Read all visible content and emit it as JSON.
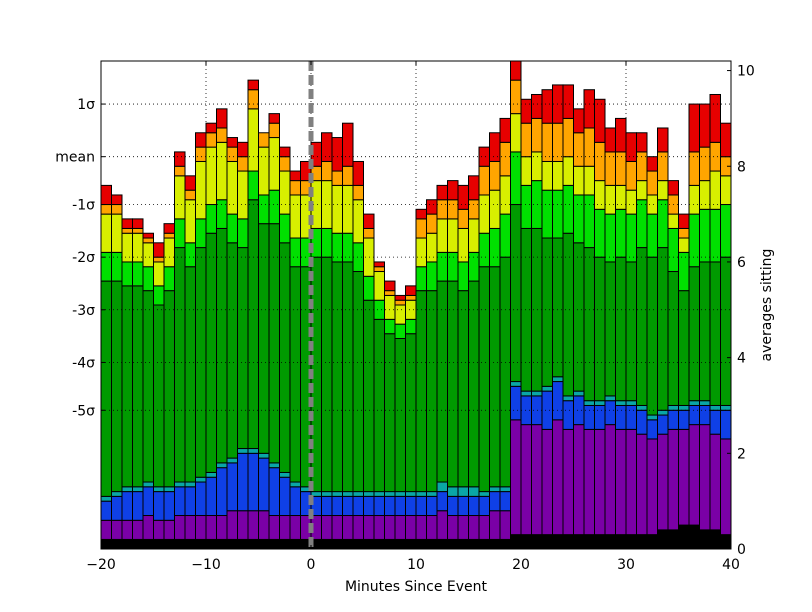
{
  "chart_data": {
    "type": "bar",
    "stacked": true,
    "xlabel": "Minutes Since Event",
    "ylabel_right": "averages sitting",
    "xlim": [
      -20,
      40
    ],
    "ylim_right": [
      0,
      10.2
    ],
    "grid": true,
    "event_marker_x": 0,
    "x_ticks": [
      "−20",
      "−10",
      "0",
      "10",
      "20",
      "30",
      "40"
    ],
    "x_tick_values": [
      -20,
      -10,
      0,
      10,
      20,
      30,
      40
    ],
    "y_right_ticks": [
      "0",
      "2",
      "4",
      "6",
      "8",
      "10"
    ],
    "y_right_tick_values": [
      0,
      2,
      4,
      6,
      8,
      10
    ],
    "y_left_ticks": [
      {
        "label": "1σ",
        "value": 9.3
      },
      {
        "label": "mean",
        "value": 8.2
      },
      {
        "label": "-1σ",
        "value": 7.2
      },
      {
        "label": "-2σ",
        "value": 6.1
      },
      {
        "label": "-3σ",
        "value": 5.0
      },
      {
        "label": "-4σ",
        "value": 3.9
      },
      {
        "label": "-5σ",
        "value": 2.9
      }
    ],
    "bin_start": -20,
    "bin_width": 1,
    "band_colors": [
      "#000000",
      "#7a00a6",
      "#0f40e6",
      "#0aa6a6",
      "#009a00",
      "#00e000",
      "#d8ef00",
      "#ffa500",
      "#e60000"
    ],
    "totals": [
      7.6,
      7.4,
      6.9,
      6.9,
      6.6,
      6.4,
      6.8,
      8.3,
      7.8,
      8.7,
      8.9,
      9.2,
      8.6,
      8.5,
      9.8,
      8.6,
      9.1,
      8.4,
      7.9,
      8.1,
      8.5,
      8.7,
      8.6,
      8.9,
      8.1,
      7.0,
      6.0,
      5.6,
      5.3,
      5.5,
      7.1,
      7.3,
      7.6,
      7.7,
      7.6,
      7.8,
      8.4,
      8.7,
      9.0,
      10.2,
      9.4,
      9.5,
      9.6,
      9.7,
      9.7,
      9.2,
      9.6,
      9.4,
      8.8,
      9.0,
      8.7,
      8.7,
      8.2,
      8.8,
      7.7,
      7.0,
      9.3,
      9.3,
      9.5,
      8.9
    ],
    "bands": [
      [
        0.2,
        0.2,
        0.2,
        0.2,
        0.2,
        0.2,
        0.2,
        0.2,
        0.2,
        0.2,
        0.2,
        0.2,
        0.2,
        0.2,
        0.2,
        0.2,
        0.2,
        0.2,
        0.2,
        0.2,
        0.2,
        0.2,
        0.2,
        0.2,
        0.2,
        0.2,
        0.2,
        0.2,
        0.2,
        0.2,
        0.2,
        0.2,
        0.2,
        0.2,
        0.2,
        0.2,
        0.2,
        0.2,
        0.2,
        0.3,
        0.3,
        0.3,
        0.3,
        0.3,
        0.3,
        0.3,
        0.3,
        0.3,
        0.3,
        0.3,
        0.3,
        0.3,
        0.3,
        0.4,
        0.4,
        0.5,
        0.5,
        0.4,
        0.4,
        0.3
      ],
      [
        0.4,
        0.4,
        0.4,
        0.4,
        0.5,
        0.4,
        0.4,
        0.5,
        0.5,
        0.5,
        0.5,
        0.5,
        0.6,
        0.6,
        0.6,
        0.6,
        0.5,
        0.5,
        0.5,
        0.5,
        0.5,
        0.5,
        0.5,
        0.5,
        0.5,
        0.5,
        0.5,
        0.5,
        0.5,
        0.5,
        0.5,
        0.5,
        0.6,
        0.5,
        0.5,
        0.5,
        0.5,
        0.6,
        0.6,
        2.4,
        2.3,
        2.3,
        2.2,
        2.4,
        2.2,
        2.3,
        2.2,
        2.2,
        2.3,
        2.2,
        2.2,
        2.1,
        2.0,
        2.0,
        2.1,
        2.0,
        2.1,
        2.2,
        2.0,
        2.0
      ],
      [
        0.4,
        0.5,
        0.6,
        0.6,
        0.6,
        0.6,
        0.6,
        0.6,
        0.6,
        0.7,
        0.8,
        1.0,
        1.0,
        1.2,
        1.2,
        1.1,
        1.0,
        0.8,
        0.6,
        0.5,
        0.4,
        0.4,
        0.4,
        0.4,
        0.4,
        0.4,
        0.4,
        0.4,
        0.4,
        0.4,
        0.4,
        0.4,
        0.4,
        0.4,
        0.4,
        0.4,
        0.4,
        0.4,
        0.4,
        0.7,
        0.6,
        0.6,
        0.8,
        0.8,
        0.6,
        0.6,
        0.5,
        0.5,
        0.5,
        0.5,
        0.5,
        0.5,
        0.4,
        0.4,
        0.4,
        0.4,
        0.4,
        0.4,
        0.5,
        0.6
      ],
      [
        0.1,
        0.1,
        0.1,
        0.1,
        0.1,
        0.1,
        0.1,
        0.1,
        0.1,
        0.1,
        0.1,
        0.1,
        0.1,
        0.1,
        0.1,
        0.1,
        0.1,
        0.1,
        0.1,
        0.1,
        0.1,
        0.1,
        0.1,
        0.1,
        0.1,
        0.1,
        0.1,
        0.1,
        0.1,
        0.1,
        0.1,
        0.1,
        0.2,
        0.2,
        0.2,
        0.2,
        0.1,
        0.1,
        0.1,
        0.1,
        0.1,
        0.1,
        0.1,
        0.1,
        0.1,
        0.1,
        0.1,
        0.1,
        0.1,
        0.1,
        0.1,
        0.1,
        0.1,
        0.1,
        0.1,
        0.1,
        0.1,
        0.1,
        0.1,
        0.1
      ],
      [
        4.5,
        4.4,
        4.2,
        4.2,
        4.0,
        3.8,
        4.1,
        4.9,
        4.5,
        4.8,
        5.0,
        4.9,
        4.5,
        4.2,
        5.2,
        4.8,
        5.0,
        4.8,
        4.5,
        4.6,
        4.9,
        4.9,
        4.8,
        4.8,
        4.6,
        4.0,
        3.6,
        3.3,
        3.2,
        3.3,
        4.2,
        4.2,
        4.2,
        4.3,
        4.1,
        4.3,
        4.7,
        4.6,
        4.8,
        3.7,
        3.4,
        3.4,
        3.1,
        2.9,
        3.4,
        3.1,
        3.2,
        3.0,
        2.8,
        3.0,
        2.9,
        3.3,
        3.3,
        3.4,
        2.8,
        2.4,
        2.8,
        2.9,
        3.0,
        3.1
      ],
      [
        0.6,
        0.6,
        0.5,
        0.5,
        0.5,
        0.4,
        0.5,
        0.6,
        0.5,
        0.6,
        0.6,
        0.6,
        0.6,
        0.6,
        0.6,
        0.6,
        0.7,
        0.6,
        0.6,
        0.6,
        0.6,
        0.6,
        0.6,
        0.6,
        0.6,
        0.5,
        0.4,
        0.3,
        0.3,
        0.3,
        0.5,
        0.6,
        0.6,
        0.6,
        0.6,
        0.6,
        0.7,
        0.8,
        0.9,
        1.1,
        0.9,
        1.0,
        1.0,
        1.0,
        1.0,
        1.0,
        1.1,
        1.0,
        1.0,
        1.0,
        1.0,
        1.0,
        0.9,
        1.0,
        0.9,
        0.8,
        1.1,
        1.1,
        1.1,
        1.1
      ],
      [
        0.8,
        0.8,
        0.6,
        0.6,
        0.5,
        0.5,
        0.6,
        0.9,
        0.9,
        1.2,
        1.2,
        1.2,
        1.1,
        1.0,
        1.3,
        1.0,
        1.1,
        0.9,
        0.9,
        0.9,
        1.0,
        1.0,
        1.0,
        1.0,
        0.9,
        0.8,
        0.6,
        0.5,
        0.4,
        0.4,
        0.6,
        0.6,
        0.7,
        0.7,
        0.7,
        0.7,
        0.8,
        0.8,
        0.8,
        0.8,
        0.6,
        0.6,
        0.6,
        0.6,
        0.6,
        0.6,
        0.6,
        0.6,
        0.6,
        0.5,
        0.5,
        0.4,
        0.4,
        0.4,
        0.3,
        0.3,
        0.6,
        0.6,
        0.8,
        0.6
      ],
      [
        0.2,
        0.2,
        0.1,
        0.1,
        0.1,
        0.1,
        0.1,
        0.2,
        0.2,
        0.3,
        0.3,
        0.3,
        0.3,
        0.3,
        0.4,
        0.3,
        0.3,
        0.3,
        0.3,
        0.3,
        0.3,
        0.4,
        0.3,
        0.4,
        0.3,
        0.2,
        0.1,
        0.1,
        0.1,
        0.1,
        0.4,
        0.4,
        0.4,
        0.4,
        0.4,
        0.4,
        0.6,
        0.6,
        0.7,
        0.7,
        0.7,
        0.7,
        0.8,
        0.8,
        0.8,
        0.7,
        0.8,
        0.8,
        0.7,
        0.7,
        0.6,
        0.6,
        0.5,
        0.6,
        0.4,
        0.2,
        0.7,
        0.7,
        0.6,
        0.4
      ],
      [
        0.4,
        0.2,
        0.2,
        0.2,
        0.1,
        0.3,
        0.2,
        0.3,
        0.3,
        0.3,
        0.2,
        0.2,
        0.2,
        0.3,
        0.3,
        0.3,
        0.2,
        0.2,
        0.2,
        0.4,
        0.5,
        0.6,
        0.7,
        0.9,
        0.5,
        0.3,
        0.2,
        0.2,
        0.2,
        0.2,
        0.2,
        0.3,
        0.3,
        0.4,
        0.5,
        0.5,
        0.4,
        0.6,
        0.5,
        0.4,
        0.5,
        0.5,
        0.7,
        0.8,
        0.8,
        0.5,
        0.8,
        1.0,
        0.5,
        0.7,
        0.6,
        0.4,
        0.3,
        0.5,
        0.3,
        0.3,
        0.6,
        0.5,
        0.5,
        0.3
      ]
    ]
  }
}
